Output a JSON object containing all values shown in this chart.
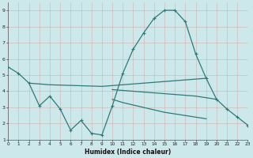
{
  "x_main": [
    0,
    1,
    2,
    3,
    4,
    5,
    6,
    7,
    8,
    9,
    10,
    11,
    12,
    13,
    14,
    15,
    16,
    17,
    18,
    19,
    20,
    21,
    22,
    23
  ],
  "y_main": [
    5.5,
    5.1,
    4.5,
    3.1,
    3.7,
    2.9,
    1.6,
    2.2,
    1.4,
    1.3,
    3.1,
    5.1,
    6.6,
    7.6,
    8.5,
    9.0,
    9.0,
    8.3,
    6.3,
    4.8,
    3.5,
    2.9,
    2.4,
    1.9
  ],
  "x_upper": [
    2,
    3,
    4,
    5,
    6,
    7,
    8,
    9,
    10,
    11,
    12,
    13,
    14,
    15,
    16,
    17,
    18,
    19
  ],
  "y_upper": [
    4.5,
    4.45,
    4.4,
    4.38,
    4.36,
    4.34,
    4.32,
    4.3,
    4.35,
    4.4,
    4.45,
    4.5,
    4.55,
    4.6,
    4.65,
    4.7,
    4.75,
    4.8
  ],
  "x_mid": [
    10,
    11,
    12,
    13,
    14,
    15,
    16,
    17,
    18,
    19,
    20
  ],
  "y_mid": [
    4.1,
    4.05,
    4.0,
    3.95,
    3.9,
    3.85,
    3.8,
    3.75,
    3.7,
    3.6,
    3.5
  ],
  "x_low": [
    10,
    11,
    12,
    13,
    14,
    15,
    16,
    17,
    18,
    19
  ],
  "y_low": [
    3.5,
    3.3,
    3.15,
    3.0,
    2.85,
    2.7,
    2.6,
    2.5,
    2.4,
    2.3
  ],
  "color": "#2d7a7a",
  "bg_color": "#cce8ea",
  "grid_color": "#aacccc",
  "xlabel": "Humidex (Indice chaleur)",
  "ylim": [
    1,
    9.5
  ],
  "xlim": [
    0,
    23
  ],
  "yticks": [
    1,
    2,
    3,
    4,
    5,
    6,
    7,
    8,
    9
  ],
  "xticks": [
    0,
    1,
    2,
    3,
    4,
    5,
    6,
    7,
    8,
    9,
    10,
    11,
    12,
    13,
    14,
    15,
    16,
    17,
    18,
    19,
    20,
    21,
    22,
    23
  ]
}
